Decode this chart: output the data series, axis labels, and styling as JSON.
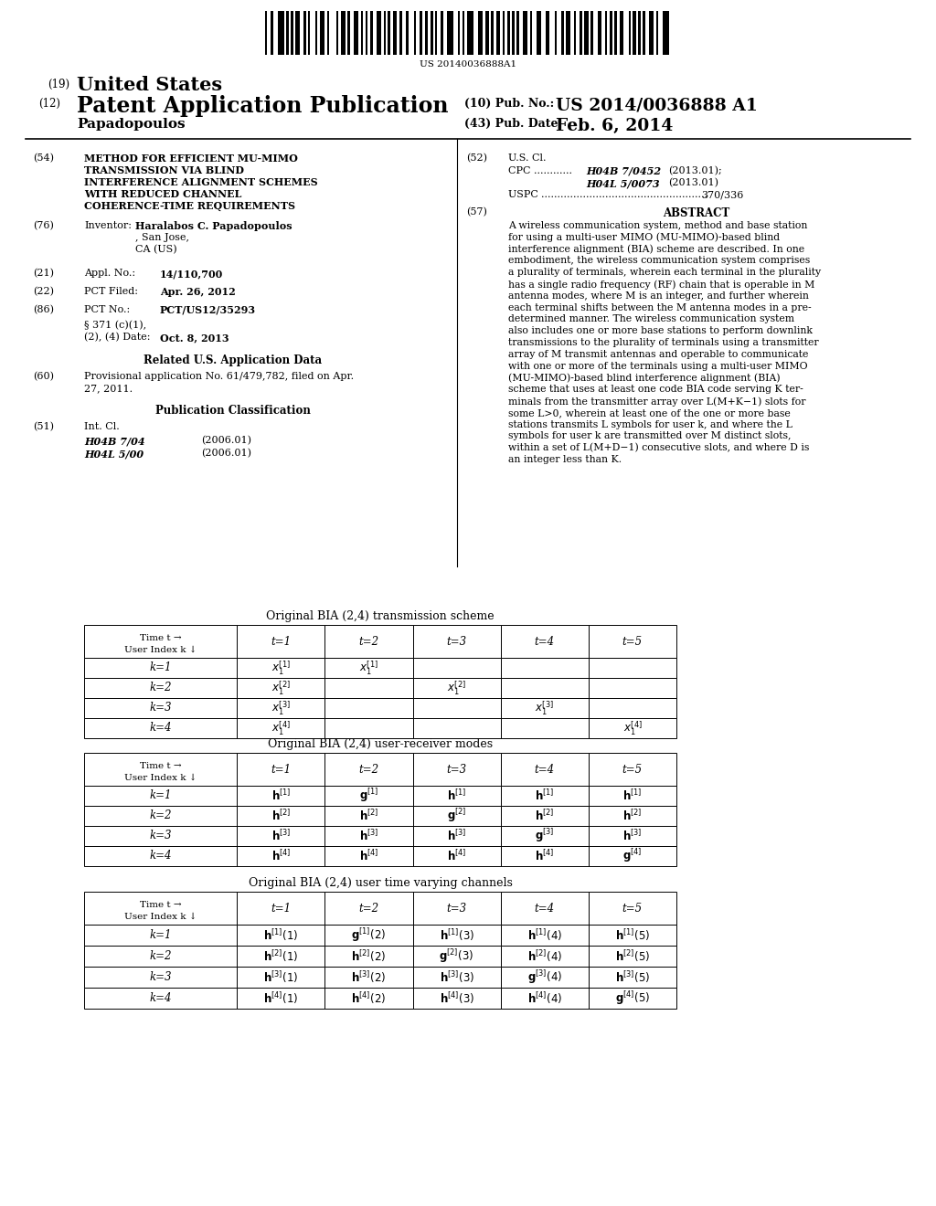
{
  "barcode_text": "US 20140036888A1",
  "bg_color": "#ffffff",
  "text_color": "#000000",
  "table1_title": "Original BIA (2,4) transmission scheme",
  "table2_title": "Original BIA (2,4) user-receiver modes",
  "table3_title": "Original BIA (2,4) user time varying channels"
}
